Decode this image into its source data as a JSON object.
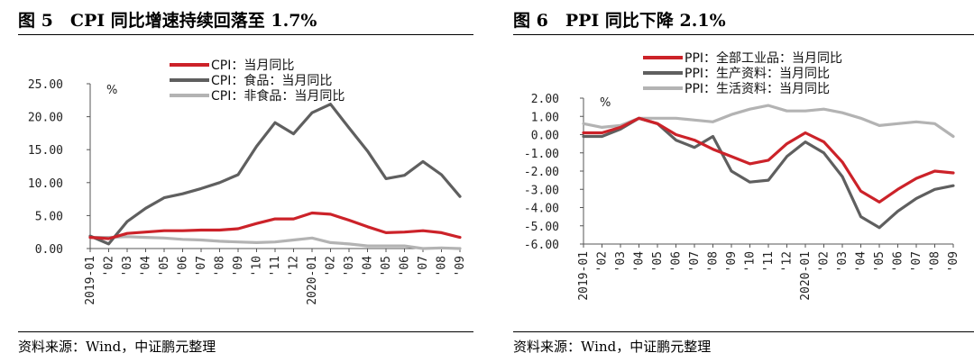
{
  "charts": [
    {
      "fig_title": "图 5　CPI 同比增速持续回落至 1.7%",
      "source": "资料来源：Wind，中证鹏元整理",
      "unit": "%",
      "y_tick_labels": [
        "25.00",
        "20.00",
        "15.00",
        "10.00",
        "5.00",
        "0.00"
      ],
      "x_tick_labels": [
        "2019-01",
        "'02",
        "'03",
        "'04",
        "'05",
        "'06",
        "'07",
        "'08",
        "'09",
        "'10",
        "'11",
        "'12",
        "2020-01",
        "'02",
        "'03",
        "'04",
        "'05",
        "'06",
        "'07",
        "'08",
        "'09"
      ],
      "legend": [
        "CPI：当月同比",
        "CPI：食品：当月同比",
        "CPI：非食品：当月同比"
      ]
    },
    {
      "fig_title": "图 6　PPI 同比下降 2.1%",
      "source": "资料来源：Wind，中证鹏元整理",
      "unit": "%",
      "y_tick_labels": [
        "2.00",
        "1.00",
        "0.00",
        "-1.00",
        "-2.00",
        "-3.00",
        "-4.00",
        "-5.00",
        "-6.00"
      ],
      "x_tick_labels": [
        "2019-01",
        "'02",
        "'03",
        "'04",
        "'05",
        "'06",
        "'07",
        "'08",
        "'09",
        "'10",
        "'11",
        "'12",
        "2020-01",
        "'02",
        "'03",
        "'04",
        "'05",
        "'06",
        "'07",
        "'08",
        "'09"
      ],
      "legend": [
        "PPI：全部工业品：当月同比",
        "PPI：生产资料：当月同比",
        "PPI：生活资料：当月同比"
      ]
    }
  ],
  "chart_data": [
    {
      "type": "line",
      "title": "图 5　CPI 同比增速持续回落至 1.7%",
      "ylabel": "%",
      "ylim": [
        0,
        25
      ],
      "grid": false,
      "legend_position": "top",
      "x": [
        "2019-01",
        "2019-02",
        "2019-03",
        "2019-04",
        "2019-05",
        "2019-06",
        "2019-07",
        "2019-08",
        "2019-09",
        "2019-10",
        "2019-11",
        "2019-12",
        "2020-01",
        "2020-02",
        "2020-03",
        "2020-04",
        "2020-05",
        "2020-06",
        "2020-07",
        "2020-08",
        "2020-09"
      ],
      "series": [
        {
          "name": "CPI：当月同比",
          "color": "#cc2229",
          "values": [
            1.7,
            1.5,
            2.3,
            2.5,
            2.7,
            2.7,
            2.8,
            2.8,
            3.0,
            3.8,
            4.5,
            4.5,
            5.4,
            5.2,
            4.3,
            3.3,
            2.4,
            2.5,
            2.7,
            2.4,
            1.7
          ]
        },
        {
          "name": "CPI：食品：当月同比",
          "color": "#5f5f5f",
          "values": [
            1.9,
            0.7,
            4.1,
            6.1,
            7.7,
            8.3,
            9.1,
            10.0,
            11.2,
            15.5,
            19.1,
            17.4,
            20.6,
            21.9,
            18.3,
            14.8,
            10.6,
            11.1,
            13.2,
            11.2,
            7.9
          ]
        },
        {
          "name": "CPI：非食品：当月同比",
          "color": "#b3b3b3",
          "values": [
            1.7,
            1.7,
            1.8,
            1.7,
            1.6,
            1.4,
            1.3,
            1.1,
            1.0,
            0.9,
            1.0,
            1.3,
            1.6,
            0.9,
            0.7,
            0.4,
            0.4,
            0.4,
            0.0,
            0.1,
            0.0
          ]
        }
      ]
    },
    {
      "type": "line",
      "title": "图 6　PPI 同比下降 2.1%",
      "ylabel": "%",
      "ylim": [
        -6,
        2
      ],
      "grid": false,
      "legend_position": "top",
      "x": [
        "2019-01",
        "2019-02",
        "2019-03",
        "2019-04",
        "2019-05",
        "2019-06",
        "2019-07",
        "2019-08",
        "2019-09",
        "2019-10",
        "2019-11",
        "2019-12",
        "2020-01",
        "2020-02",
        "2020-03",
        "2020-04",
        "2020-05",
        "2020-06",
        "2020-07",
        "2020-08",
        "2020-09"
      ],
      "series": [
        {
          "name": "PPI：全部工业品：当月同比",
          "color": "#cc2229",
          "values": [
            0.1,
            0.1,
            0.4,
            0.9,
            0.6,
            0.0,
            -0.3,
            -0.8,
            -1.2,
            -1.6,
            -1.4,
            -0.5,
            0.1,
            -0.4,
            -1.5,
            -3.1,
            -3.7,
            -3.0,
            -2.4,
            -2.0,
            -2.1
          ]
        },
        {
          "name": "PPI：生产资料：当月同比",
          "color": "#5f5f5f",
          "values": [
            -0.1,
            -0.1,
            0.3,
            0.9,
            0.6,
            -0.3,
            -0.7,
            -0.1,
            -2.0,
            -2.6,
            -2.5,
            -1.2,
            -0.4,
            -1.0,
            -2.3,
            -4.5,
            -5.1,
            -4.2,
            -3.5,
            -3.0,
            -2.8
          ]
        },
        {
          "name": "PPI：生活资料：当月同比",
          "color": "#b3b3b3",
          "values": [
            0.6,
            0.4,
            0.5,
            0.9,
            0.9,
            0.9,
            0.8,
            0.7,
            1.1,
            1.4,
            1.6,
            1.3,
            1.3,
            1.4,
            1.2,
            0.9,
            0.5,
            0.6,
            0.7,
            0.6,
            -0.1
          ]
        }
      ]
    }
  ]
}
